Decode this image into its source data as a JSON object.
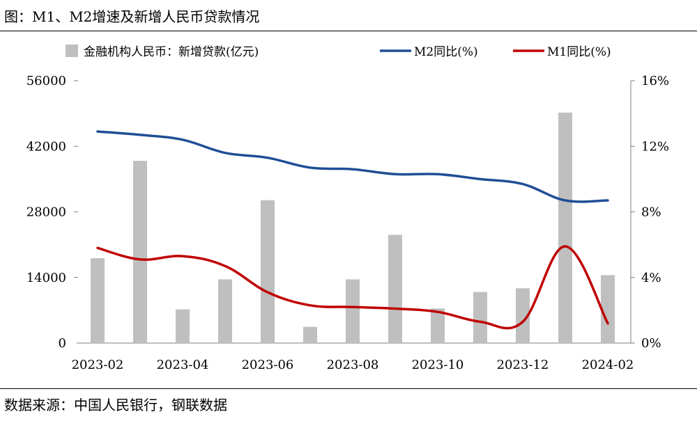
{
  "header": {
    "title": "图：M1、M2增速及新增人民币贷款情况"
  },
  "footer": {
    "source": "数据来源：中国人民银行，钢联数据"
  },
  "colors": {
    "bar": "#bfbfbf",
    "m2": "#1f4e96",
    "m1": "#c00000"
  },
  "chart_data": {
    "type": "bar+line",
    "categories": [
      "2023-02",
      "2023-03",
      "2023-04",
      "2023-05",
      "2023-06",
      "2023-07",
      "2023-08",
      "2023-09",
      "2023-10",
      "2023-11",
      "2023-12",
      "2024-01",
      "2024-02"
    ],
    "x_tick_labels": [
      "2023-02",
      "2023-04",
      "2023-06",
      "2023-08",
      "2023-10",
      "2023-12",
      "2024-02"
    ],
    "y_left": {
      "ticks": [
        "56000",
        "42000",
        "28000",
        "14000",
        "0"
      ],
      "lim": [
        0,
        56000
      ]
    },
    "y_right": {
      "ticks": [
        "16%",
        "12%",
        "8%",
        "4%",
        "0%"
      ],
      "lim": [
        0,
        16
      ]
    },
    "series": [
      {
        "name": "金融机构人民币：新增贷款(亿元)",
        "type": "bar",
        "axis": "left",
        "values": [
          18100,
          38900,
          7188,
          13600,
          30500,
          3459,
          13600,
          23100,
          7384,
          10900,
          11700,
          49200,
          14500
        ]
      },
      {
        "name": "M2同比(%)",
        "type": "line",
        "axis": "right",
        "values": [
          12.9,
          12.7,
          12.4,
          11.6,
          11.3,
          10.7,
          10.6,
          10.3,
          10.3,
          10.0,
          9.7,
          8.7,
          8.7
        ]
      },
      {
        "name": "M1同比(%)",
        "type": "line",
        "axis": "right",
        "values": [
          5.8,
          5.1,
          5.3,
          4.7,
          3.1,
          2.3,
          2.2,
          2.1,
          1.9,
          1.3,
          1.3,
          5.9,
          1.2
        ]
      }
    ],
    "legend_position": "top"
  }
}
